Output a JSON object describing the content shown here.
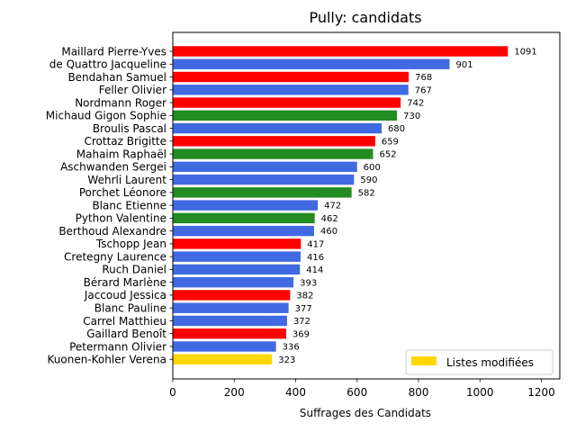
{
  "chart_data": {
    "type": "bar",
    "orientation": "horizontal",
    "title": "Pully: candidats",
    "xlabel": "Suffrages des Candidats",
    "ylabel": "",
    "xlim": [
      0,
      1260
    ],
    "xticks": [
      0,
      200,
      400,
      600,
      800,
      1000,
      1200
    ],
    "grid": false,
    "legend": {
      "position": "bottom-right",
      "entries": [
        {
          "label": "Listes modifiées",
          "color": "#FFD700"
        }
      ]
    },
    "categories": [
      "Maillard Pierre-Yves",
      "de Quattro Jacqueline",
      "Bendahan Samuel",
      "Feller Olivier",
      "Nordmann Roger",
      "Michaud Gigon Sophie",
      "Broulis Pascal",
      "Crottaz Brigitte",
      "Mahaim Raphaël",
      "Aschwanden Sergei",
      "Wehrli Laurent",
      "Porchet Léonore",
      "Blanc Etienne",
      "Python Valentine",
      "Berthoud Alexandre",
      "Tschopp Jean",
      "Cretegny Laurence",
      "Ruch Daniel",
      "Bérard Marlène",
      "Jaccoud Jessica",
      "Blanc Pauline",
      "Carrel Matthieu",
      "Gaillard Benoît",
      "Petermann Olivier",
      "Kuonen-Kohler Verena"
    ],
    "values": [
      1091,
      901,
      768,
      767,
      742,
      730,
      680,
      659,
      652,
      600,
      590,
      582,
      472,
      462,
      460,
      417,
      416,
      414,
      393,
      382,
      377,
      372,
      369,
      336,
      323
    ],
    "colors": [
      "#FF0000",
      "#4169E1",
      "#FF0000",
      "#4169E1",
      "#FF0000",
      "#228B22",
      "#4169E1",
      "#FF0000",
      "#228B22",
      "#4169E1",
      "#4169E1",
      "#228B22",
      "#4169E1",
      "#228B22",
      "#4169E1",
      "#FF0000",
      "#4169E1",
      "#4169E1",
      "#4169E1",
      "#FF0000",
      "#4169E1",
      "#4169E1",
      "#FF0000",
      "#4169E1",
      "#FFD700"
    ]
  }
}
